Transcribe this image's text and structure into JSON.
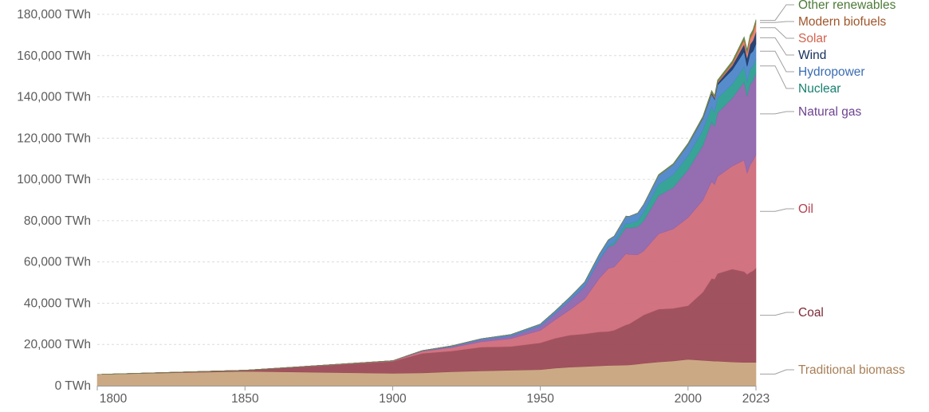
{
  "chart_data": {
    "type": "area",
    "stacked": true,
    "title": "",
    "xlabel": "",
    "ylabel": "",
    "y_unit_suffix": " TWh",
    "xlim": [
      1800,
      2023
    ],
    "ylim": [
      0,
      180000
    ],
    "y_ticks": [
      0,
      20000,
      40000,
      60000,
      80000,
      100000,
      120000,
      140000,
      160000,
      180000
    ],
    "y_tick_labels": [
      "0 TWh",
      "20,000 TWh",
      "40,000 TWh",
      "60,000 TWh",
      "80,000 TWh",
      "100,000 TWh",
      "120,000 TWh",
      "140,000 TWh",
      "160,000 TWh",
      "180,000 TWh"
    ],
    "x_ticks": [
      1800,
      1850,
      1900,
      1950,
      2000,
      2023
    ],
    "x_tick_labels": [
      "1800",
      "1850",
      "1900",
      "1950",
      "2000",
      "2023"
    ],
    "grid": "horizontal dashed",
    "legend_placement": "right, labels at series ends",
    "x": [
      1800,
      1850,
      1900,
      1910,
      1920,
      1930,
      1940,
      1950,
      1955,
      1960,
      1965,
      1970,
      1973,
      1975,
      1979,
      1980,
      1983,
      1985,
      1990,
      1995,
      2000,
      2005,
      2008,
      2009,
      2010,
      2015,
      2019,
      2020,
      2021,
      2022,
      2023
    ],
    "series": [
      {
        "name": "Traditional biomass",
        "color": "#c8a47e",
        "label_color": "#a87f56",
        "values": [
          5500,
          7000,
          6000,
          6200,
          6800,
          7200,
          7500,
          7800,
          8500,
          9000,
          9300,
          9600,
          9800,
          9900,
          10000,
          10100,
          10500,
          10800,
          11500,
          12000,
          12800,
          12300,
          12000,
          11900,
          11900,
          11500,
          11300,
          11300,
          11300,
          11300,
          11300
        ]
      },
      {
        "name": "Coal",
        "color": "#9b4a55",
        "label_color": "#7c2b37",
        "values": [
          0,
          500,
          5800,
          9500,
          10000,
          11500,
          11500,
          13000,
          14500,
          15500,
          15800,
          16500,
          16500,
          17000,
          19500,
          19800,
          22000,
          23500,
          25600,
          25500,
          26000,
          33000,
          40000,
          39800,
          42500,
          45000,
          44000,
          42700,
          43700,
          44400,
          45700
        ]
      },
      {
        "name": "Oil",
        "color": "#d06b7b",
        "label_color": "#b2424f",
        "values": [
          0,
          0,
          200,
          900,
          1700,
          2600,
          3800,
          6000,
          9000,
          12300,
          17000,
          26000,
          30500,
          30700,
          34500,
          33700,
          31000,
          31000,
          36500,
          38500,
          42700,
          44600,
          47000,
          45800,
          47000,
          50000,
          54000,
          49000,
          52000,
          53500,
          55000
        ]
      },
      {
        "name": "Natural gas",
        "color": "#8f65ad",
        "label_color": "#6e4390",
        "values": [
          0,
          0,
          100,
          300,
          500,
          900,
          1200,
          2100,
          2900,
          4500,
          6000,
          8900,
          10400,
          10800,
          12700,
          12800,
          13600,
          14700,
          18500,
          20100,
          23200,
          26500,
          29000,
          28000,
          30800,
          33000,
          38000,
          37300,
          39200,
          38700,
          39500
        ]
      },
      {
        "name": "Nuclear",
        "color": "#2d9f91",
        "label_color": "#17806f",
        "values": [
          0,
          0,
          0,
          0,
          0,
          0,
          0,
          0,
          0,
          20,
          100,
          200,
          500,
          1000,
          2000,
          2100,
          2800,
          4000,
          5400,
          6200,
          6800,
          7300,
          7200,
          7000,
          7200,
          6700,
          7300,
          7000,
          7300,
          6900,
          7000
        ]
      },
      {
        "name": "Hydropower",
        "color": "#4d86c8",
        "label_color": "#3a6cb2",
        "values": [
          0,
          0,
          40,
          150,
          350,
          600,
          800,
          1000,
          1300,
          1600,
          2100,
          2700,
          3000,
          3100,
          3500,
          3550,
          3800,
          3900,
          4400,
          4900,
          5400,
          5800,
          6200,
          6200,
          6400,
          7000,
          7400,
          7500,
          7300,
          7400,
          7300
        ]
      },
      {
        "name": "Wind",
        "color": "#1e3a6b",
        "label_color": "#152f5c",
        "values": [
          0,
          0,
          0,
          0,
          0,
          0,
          0,
          0,
          0,
          0,
          0,
          0,
          0,
          0,
          0,
          0,
          0,
          0,
          10,
          20,
          80,
          280,
          580,
          700,
          900,
          2100,
          3600,
          4100,
          4600,
          5200,
          5700
        ]
      },
      {
        "name": "Solar",
        "color": "#e5806e",
        "label_color": "#d3624d",
        "values": [
          0,
          0,
          0,
          0,
          0,
          0,
          0,
          0,
          0,
          0,
          0,
          0,
          0,
          0,
          0,
          0,
          0,
          0,
          0,
          0,
          5,
          20,
          60,
          110,
          180,
          650,
          1800,
          2200,
          2700,
          3300,
          4000
        ]
      },
      {
        "name": "Modern biofuels",
        "color": "#b76d3a",
        "label_color": "#a0562b",
        "values": [
          0,
          0,
          0,
          0,
          0,
          0,
          0,
          0,
          0,
          0,
          0,
          0,
          0,
          0,
          0,
          0,
          0,
          0,
          100,
          130,
          150,
          250,
          550,
          600,
          650,
          800,
          950,
          900,
          1000,
          1050,
          1100
        ]
      },
      {
        "name": "Other renewables",
        "color": "#5f8a4c",
        "label_color": "#4d7a38",
        "values": [
          0,
          0,
          0,
          0,
          0,
          0,
          0,
          0,
          0,
          0,
          0,
          0,
          0,
          0,
          0,
          0,
          0,
          0,
          300,
          350,
          400,
          450,
          530,
          550,
          600,
          700,
          800,
          820,
          860,
          880,
          900
        ]
      }
    ]
  }
}
